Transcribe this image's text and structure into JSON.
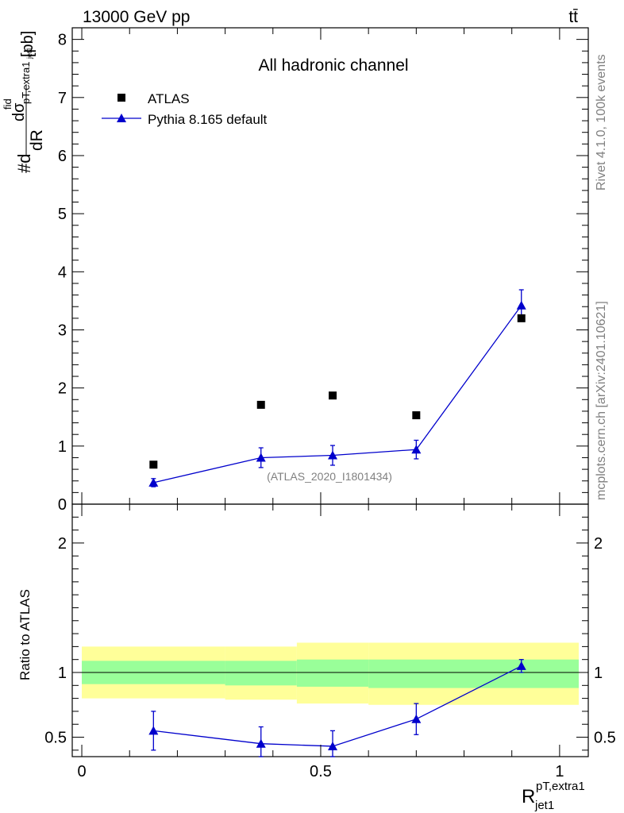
{
  "header": {
    "left": "13000 GeV pp",
    "right": "tt̄"
  },
  "side_labels": {
    "rivet": "Rivet 4.1.0,  100k events",
    "mcplots": "mcplots.cern.ch [arXiv:2401.10621]"
  },
  "chart_data": {
    "type": "scatter",
    "title": "All hadronic channel",
    "analysis_tag": "(ATLAS_2020_I1801434)",
    "ylabel_main": {
      "prefix": "#d",
      "numerator": "dσ",
      "numerator_sup": "fid",
      "numerator_sub": "pT,extra1",
      "numerator_subsub": "jet1",
      "denominator": "dR",
      "unit": "[pb]"
    },
    "xlabel": {
      "base": "R",
      "sup": "pT,extra1",
      "sub": "jet1"
    },
    "ylabel_ratio": "Ratio to ATLAS",
    "xlim": [
      -0.02,
      1.06
    ],
    "ylim_main": [
      0,
      8.2
    ],
    "ylim_ratio": [
      0.35,
      2.3
    ],
    "x_ticks": [
      {
        "value": 0,
        "label": "0"
      },
      {
        "value": 0.5,
        "label": "0.5"
      },
      {
        "value": 1,
        "label": "1"
      }
    ],
    "y_ticks_main": [
      {
        "value": 0,
        "label": "0"
      },
      {
        "value": 1,
        "label": "1"
      },
      {
        "value": 2,
        "label": "2"
      },
      {
        "value": 3,
        "label": "3"
      },
      {
        "value": 4,
        "label": "4"
      },
      {
        "value": 5,
        "label": "5"
      },
      {
        "value": 6,
        "label": "6"
      },
      {
        "value": 7,
        "label": "7"
      },
      {
        "value": 8,
        "label": "8"
      }
    ],
    "y_ticks_ratio": [
      {
        "value": 0.5,
        "label": "0.5"
      },
      {
        "value": 1,
        "label": "1"
      },
      {
        "value": 2,
        "label": "2"
      }
    ],
    "legend": [
      {
        "name": "ATLAS",
        "marker": "square",
        "color": "#000000"
      },
      {
        "name": "Pythia 8.165 default",
        "marker": "triangle",
        "color": "#0000cc"
      }
    ],
    "series": [
      {
        "name": "ATLAS",
        "x": [
          0.15,
          0.375,
          0.525,
          0.7,
          0.92
        ],
        "y": [
          0.68,
          1.71,
          1.87,
          1.53,
          3.2
        ]
      },
      {
        "name": "Pythia 8.165 default",
        "x": [
          0.15,
          0.375,
          0.525,
          0.7,
          0.92
        ],
        "y": [
          0.37,
          0.8,
          0.84,
          0.94,
          3.42
        ],
        "yerr": [
          0.07,
          0.17,
          0.17,
          0.16,
          0.27
        ]
      }
    ],
    "ratio": {
      "x": [
        0.15,
        0.375,
        0.525,
        0.7,
        0.92
      ],
      "y": [
        0.55,
        0.45,
        0.43,
        0.64,
        1.05
      ],
      "yerr": [
        0.15,
        0.13,
        0.12,
        0.12,
        0.05
      ]
    },
    "bands": {
      "bins": [
        [
          0.0,
          0.3
        ],
        [
          0.3,
          0.45
        ],
        [
          0.45,
          0.6
        ],
        [
          0.6,
          0.8
        ],
        [
          0.8,
          1.04
        ]
      ],
      "stat_lo": [
        0.91,
        0.9,
        0.89,
        0.88,
        0.88
      ],
      "stat_hi": [
        1.09,
        1.09,
        1.1,
        1.1,
        1.1
      ],
      "total_lo": [
        0.8,
        0.79,
        0.76,
        0.75,
        0.75
      ],
      "total_hi": [
        1.2,
        1.2,
        1.23,
        1.23,
        1.23
      ],
      "stat_color": "#99ff99",
      "total_color": "#ffff99"
    }
  }
}
